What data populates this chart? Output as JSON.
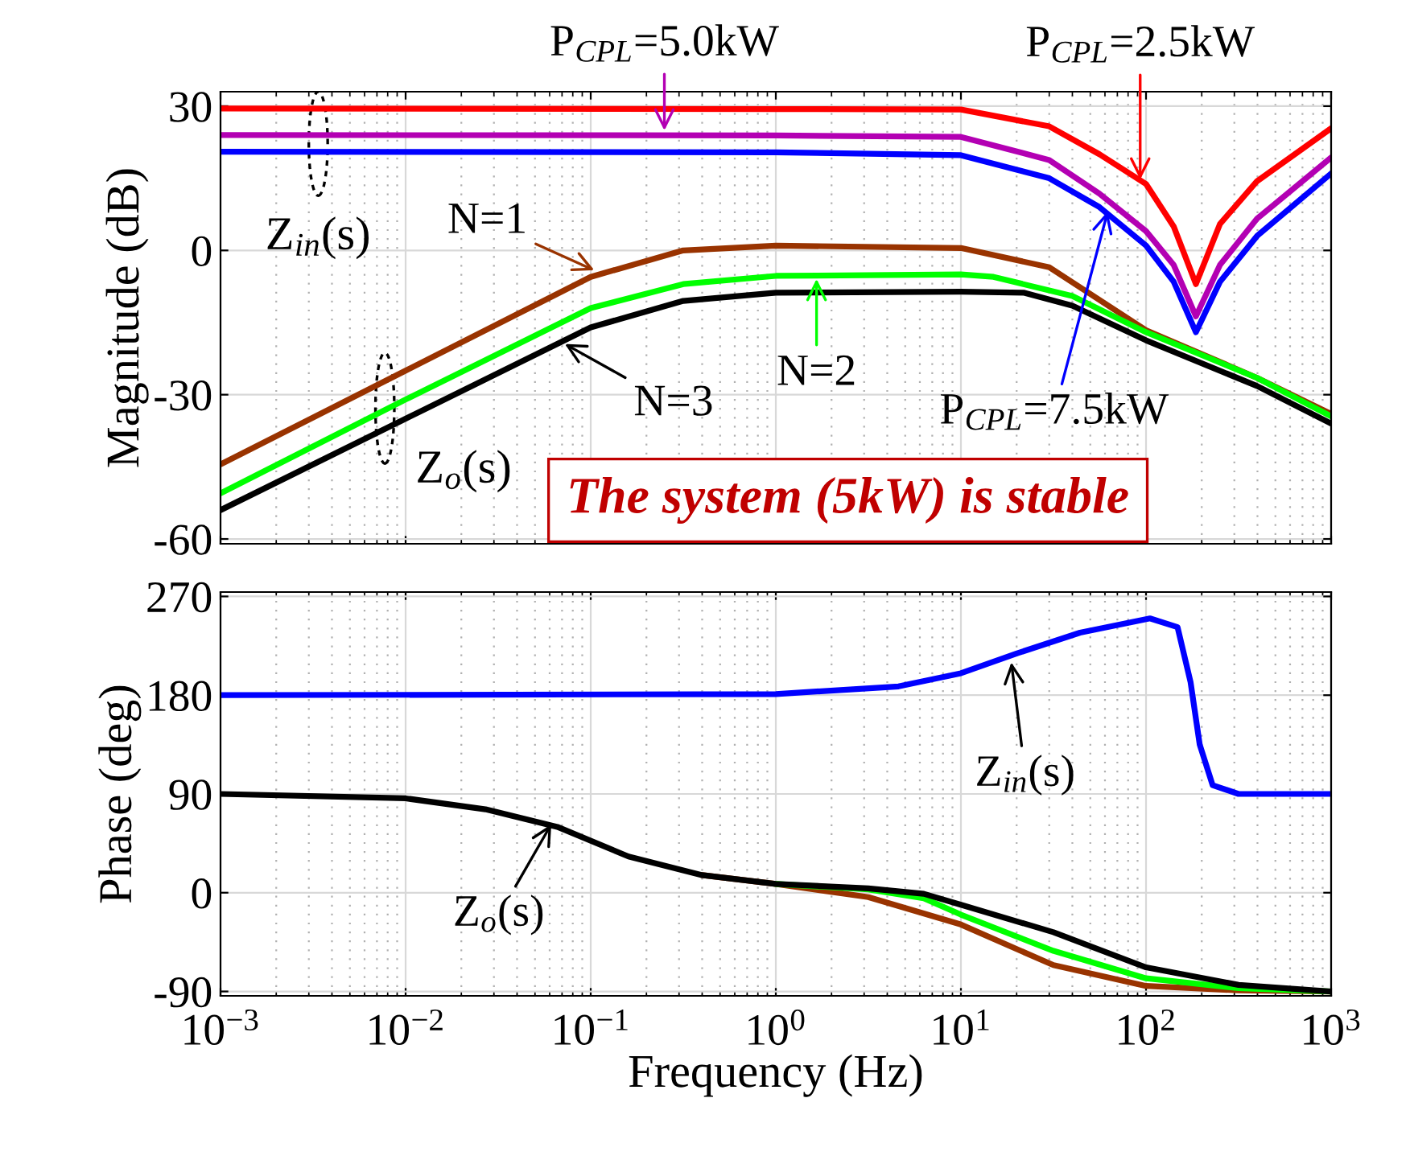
{
  "chart_data": [
    {
      "type": "line",
      "ylabel": "Magnitude (dB)",
      "log": "x",
      "grid": true,
      "tick_labels": "y",
      "line_style": "solid",
      "marker": "none",
      "xlim": [
        0.001,
        1000
      ],
      "ylim": [
        -61,
        33
      ],
      "yticks": [
        {
          "value": -60,
          "label": "-60"
        },
        {
          "value": -30,
          "label": "-30"
        },
        0,
        30
      ],
      "xticks": [
        0.001,
        0.01,
        0.1,
        1,
        10,
        100,
        1000
      ],
      "series": [
        {
          "color": "#ff0000",
          "x": [
            0.001,
            1,
            10,
            30,
            56,
            100,
            141,
            186,
            251,
            398,
            1000
          ],
          "values": [
            29.5,
            29.4,
            29.3,
            25.8,
            20,
            13.8,
            5,
            -7,
            5.5,
            14.4,
            25.4
          ]
        },
        {
          "color": "#b300b3",
          "x": [
            0.001,
            1,
            10,
            30,
            56,
            100,
            141,
            186,
            251,
            398,
            1000
          ],
          "values": [
            24,
            23.9,
            23.6,
            18.8,
            11.8,
            4,
            -3,
            -13.7,
            -3,
            6.6,
            19.3
          ]
        },
        {
          "color": "#0000ff",
          "x": [
            0.001,
            1,
            10,
            30,
            56,
            100,
            141,
            186,
            251,
            398,
            1000
          ],
          "values": [
            20.5,
            20.4,
            19.8,
            15,
            9,
            1,
            -6.5,
            -17,
            -6.5,
            3,
            16
          ]
        },
        {
          "color": "#993300",
          "x": [
            0.001,
            0.01,
            0.1,
            0.316,
            1,
            10,
            30,
            100,
            398,
            1000
          ],
          "values": [
            -44.5,
            -25,
            -5.5,
            0,
            1,
            0.5,
            -3.5,
            -16.6,
            -26.5,
            -34
          ]
        },
        {
          "color": "#00ff00",
          "x": [
            0.001,
            0.01,
            0.1,
            0.316,
            1,
            10,
            15,
            40,
            100,
            398,
            1000
          ],
          "values": [
            -50.5,
            -31,
            -12,
            -7,
            -5.3,
            -5,
            -5.5,
            -9.5,
            -17,
            -26.5,
            -34.5
          ]
        },
        {
          "color": "#000000",
          "x": [
            0.001,
            0.01,
            0.1,
            0.316,
            1,
            10,
            22,
            40,
            100,
            398,
            1000
          ],
          "values": [
            -54,
            -35,
            -16,
            -10.5,
            -8.8,
            -8.6,
            -8.8,
            -11.5,
            -18.7,
            -28.2,
            -36
          ]
        }
      ],
      "annotations": [
        {
          "text": "P$_{CPL}$=5.0kW",
          "x": 0.25,
          "y": 24
        },
        {
          "text": "P$_{CPL}$=2.5kW",
          "x": 93,
          "y": 13.8
        },
        {
          "text": "P$_{CPL}$=7.5kW",
          "x": 63,
          "y": 9
        },
        {
          "text": "N=1",
          "x": 0.11,
          "y": -4.5
        },
        {
          "text": "N=2",
          "x": 1.66,
          "y": -5
        },
        {
          "text": "N=3",
          "x": 0.069,
          "y": -19
        },
        "Z$_{in}$(s)",
        "Z$_{o}$(s)",
        "The system (5kW) is stable"
      ]
    },
    {
      "type": "line",
      "ylabel": "Phase (deg)",
      "xlabel": "Frequency (Hz)",
      "log": "x",
      "grid": true,
      "line_style": "solid",
      "marker": "none",
      "xlim": [
        0.001,
        1000
      ],
      "ylim": [
        -94,
        274
      ],
      "yticks": [
        {
          "value": -90,
          "label": "-90"
        },
        0,
        90,
        180,
        270
      ],
      "xticks": [
        {
          "value": 0.001,
          "label": "10$^{−3}$"
        },
        {
          "value": 0.01,
          "label": "10$^{−2}$"
        },
        {
          "value": 0.1,
          "label": "10$^{−1}$"
        },
        {
          "value": 1,
          "label": "10$^{0}$"
        },
        {
          "value": 10,
          "label": "10$^{1}$"
        },
        {
          "value": 100,
          "label": "10$^{2}$"
        },
        {
          "value": 1000,
          "label": "10$^{3}$"
        }
      ],
      "series": [
        {
          "color": "#0000ff",
          "x": [
            0.001,
            1,
            4.6,
            10,
            20,
            44,
            105,
            148,
            174,
            195,
            229,
            316,
            1000
          ],
          "values": [
            180,
            181,
            188,
            200,
            218,
            237,
            250,
            242,
            192,
            135,
            98,
            90,
            90
          ]
        },
        {
          "color": "#993300",
          "x": [
            0.4,
            1,
            3.16,
            10,
            31.6,
            100,
            316,
            1000
          ],
          "values": [
            16,
            8,
            -4,
            -29,
            -66,
            -85,
            -89,
            -90
          ]
        },
        {
          "color": "#00ff00",
          "x": [
            1,
            3.16,
            6.3,
            10,
            31.6,
            100,
            316,
            1000
          ],
          "values": [
            8,
            3,
            -5,
            -20,
            -53,
            -78,
            -87,
            -90
          ]
        },
        {
          "color": "#000000",
          "x": [
            0.001,
            0.01,
            0.027,
            0.066,
            0.16,
            0.4,
            1,
            3.16,
            6.3,
            10,
            31.6,
            100,
            316,
            1000
          ],
          "values": [
            90,
            86,
            76,
            60,
            33,
            16,
            8,
            4,
            -1,
            -11,
            -36,
            -68,
            -84,
            -90
          ]
        }
      ],
      "annotations": [
        {
          "text": "Z$_{in}$(s)",
          "x": 18.6,
          "y": 214
        },
        {
          "text": "Z$_{o}$(s)",
          "x": 0.063,
          "y": 66
        }
      ]
    }
  ]
}
